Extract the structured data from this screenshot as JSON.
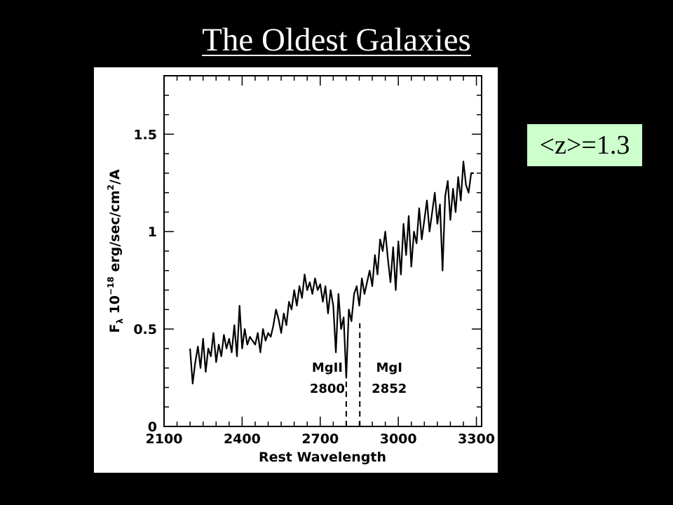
{
  "slide": {
    "title": "The Oldest Galaxies",
    "redshift_label": "<z>=1.3"
  },
  "colors": {
    "background": "#000000",
    "title_text": "#ffffff",
    "badge_background": "#ccffcc",
    "plot_background": "#ffffff",
    "plot_ink": "#000000"
  },
  "chart_data": {
    "type": "line",
    "title": "",
    "xlabel": "Rest Wavelength",
    "ylabel_parts": {
      "flux_symbol": "F",
      "flux_subscript": "λ",
      "scale_base": "10",
      "scale_exponent": "−18",
      "units_prefix": "erg/sec/cm",
      "units_power": "2",
      "units_suffix": "/A"
    },
    "xlim": [
      2100,
      3320
    ],
    "ylim": [
      0,
      1.8
    ],
    "xticks": [
      2100,
      2400,
      2700,
      3000,
      3300
    ],
    "xtick_labels": [
      "2100",
      "2400",
      "2700",
      "3000",
      "3300"
    ],
    "yticks": [
      0,
      0.5,
      1,
      1.5
    ],
    "ytick_labels": [
      "0",
      "0.5",
      "1",
      "1.5"
    ],
    "grid": false,
    "legend": "none",
    "series": [
      {
        "x": [
          2200,
          2210,
          2220,
          2230,
          2240,
          2250,
          2260,
          2270,
          2280,
          2290,
          2300,
          2310,
          2320,
          2330,
          2340,
          2350,
          2360,
          2370,
          2380,
          2390,
          2400,
          2410,
          2420,
          2430,
          2440,
          2450,
          2460,
          2470,
          2480,
          2490,
          2500,
          2510,
          2520,
          2530,
          2540,
          2550,
          2560,
          2570,
          2580,
          2590,
          2600,
          2610,
          2620,
          2630,
          2640,
          2650,
          2660,
          2670,
          2680,
          2690,
          2700,
          2710,
          2720,
          2730,
          2740,
          2750,
          2760,
          2770,
          2780,
          2790,
          2800,
          2810,
          2820,
          2830,
          2840,
          2850,
          2860,
          2870,
          2880,
          2890,
          2900,
          2910,
          2920,
          2930,
          2940,
          2950,
          2960,
          2970,
          2980,
          2990,
          3000,
          3010,
          3020,
          3030,
          3040,
          3050,
          3060,
          3070,
          3080,
          3090,
          3100,
          3110,
          3120,
          3130,
          3140,
          3150,
          3160,
          3170,
          3180,
          3190,
          3200,
          3210,
          3220,
          3230,
          3240,
          3250,
          3260,
          3270,
          3280,
          3290
        ],
        "y": [
          0.4,
          0.22,
          0.33,
          0.41,
          0.3,
          0.45,
          0.28,
          0.4,
          0.36,
          0.48,
          0.33,
          0.42,
          0.36,
          0.47,
          0.4,
          0.45,
          0.38,
          0.52,
          0.36,
          0.62,
          0.4,
          0.5,
          0.42,
          0.46,
          0.44,
          0.42,
          0.48,
          0.38,
          0.5,
          0.44,
          0.48,
          0.46,
          0.52,
          0.6,
          0.55,
          0.48,
          0.58,
          0.52,
          0.64,
          0.6,
          0.7,
          0.62,
          0.72,
          0.66,
          0.78,
          0.7,
          0.74,
          0.68,
          0.76,
          0.7,
          0.73,
          0.64,
          0.72,
          0.58,
          0.7,
          0.62,
          0.38,
          0.68,
          0.5,
          0.56,
          0.25,
          0.6,
          0.54,
          0.68,
          0.72,
          0.62,
          0.76,
          0.68,
          0.74,
          0.8,
          0.72,
          0.88,
          0.78,
          0.96,
          0.9,
          1.0,
          0.86,
          0.74,
          0.92,
          0.7,
          0.95,
          0.78,
          1.04,
          0.88,
          1.08,
          0.82,
          1.0,
          0.94,
          1.12,
          0.96,
          1.06,
          1.16,
          1.0,
          1.1,
          1.2,
          1.04,
          1.14,
          0.8,
          1.18,
          1.26,
          1.06,
          1.22,
          1.1,
          1.28,
          1.16,
          1.36,
          1.24,
          1.2,
          1.3,
          1.3
        ],
        "color": "#000000"
      }
    ],
    "annotations": [
      {
        "label_line1": "MgII",
        "label_line2": "2800",
        "x": 2800,
        "line_from_y": 0,
        "line_to_y": 0.24
      },
      {
        "label_line1": "MgI",
        "label_line2": "2852",
        "x": 2852,
        "line_from_y": 0,
        "line_to_y": 0.53
      }
    ]
  }
}
